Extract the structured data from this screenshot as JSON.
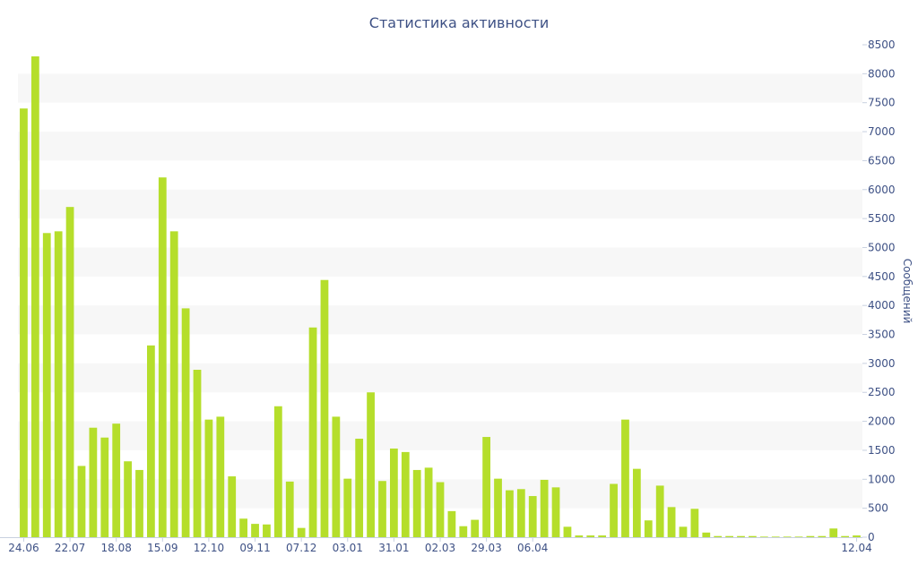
{
  "chart_data": {
    "type": "bar",
    "title": "Статистика активности",
    "ylabel": "Сообщений",
    "xlabel": "",
    "ylim": [
      0,
      8500
    ],
    "y_ticks": [
      0,
      500,
      1000,
      1500,
      2000,
      2500,
      3000,
      3500,
      4000,
      4500,
      5000,
      5500,
      6000,
      6500,
      7000,
      7500,
      8000,
      8500
    ],
    "x_tick_labels": [
      "24.06",
      "22.07",
      "18.08",
      "15.09",
      "12.10",
      "09.11",
      "07.12",
      "03.01",
      "31.01",
      "02.03",
      "29.03",
      "06.04",
      "12.04"
    ],
    "y_axis_position": "right",
    "grid": "alternating horizontal bands",
    "bar_color": "#b5de2b",
    "values": [
      7400,
      8300,
      5250,
      5280,
      5700,
      1230,
      1890,
      1720,
      1960,
      1310,
      1160,
      3310,
      6210,
      5280,
      3950,
      2890,
      2030,
      2080,
      1050,
      320,
      230,
      220,
      2260,
      960,
      160,
      3620,
      4440,
      2080,
      1010,
      1700,
      2500,
      970,
      1530,
      1470,
      1160,
      1200,
      950,
      450,
      190,
      300,
      1730,
      1010,
      810,
      830,
      710,
      990,
      860,
      180,
      30,
      30,
      30,
      920,
      2030,
      1180,
      290,
      890,
      520,
      180,
      490,
      80,
      20,
      20,
      20,
      20,
      10,
      10,
      10,
      10,
      20,
      20,
      150,
      20,
      30
    ]
  }
}
